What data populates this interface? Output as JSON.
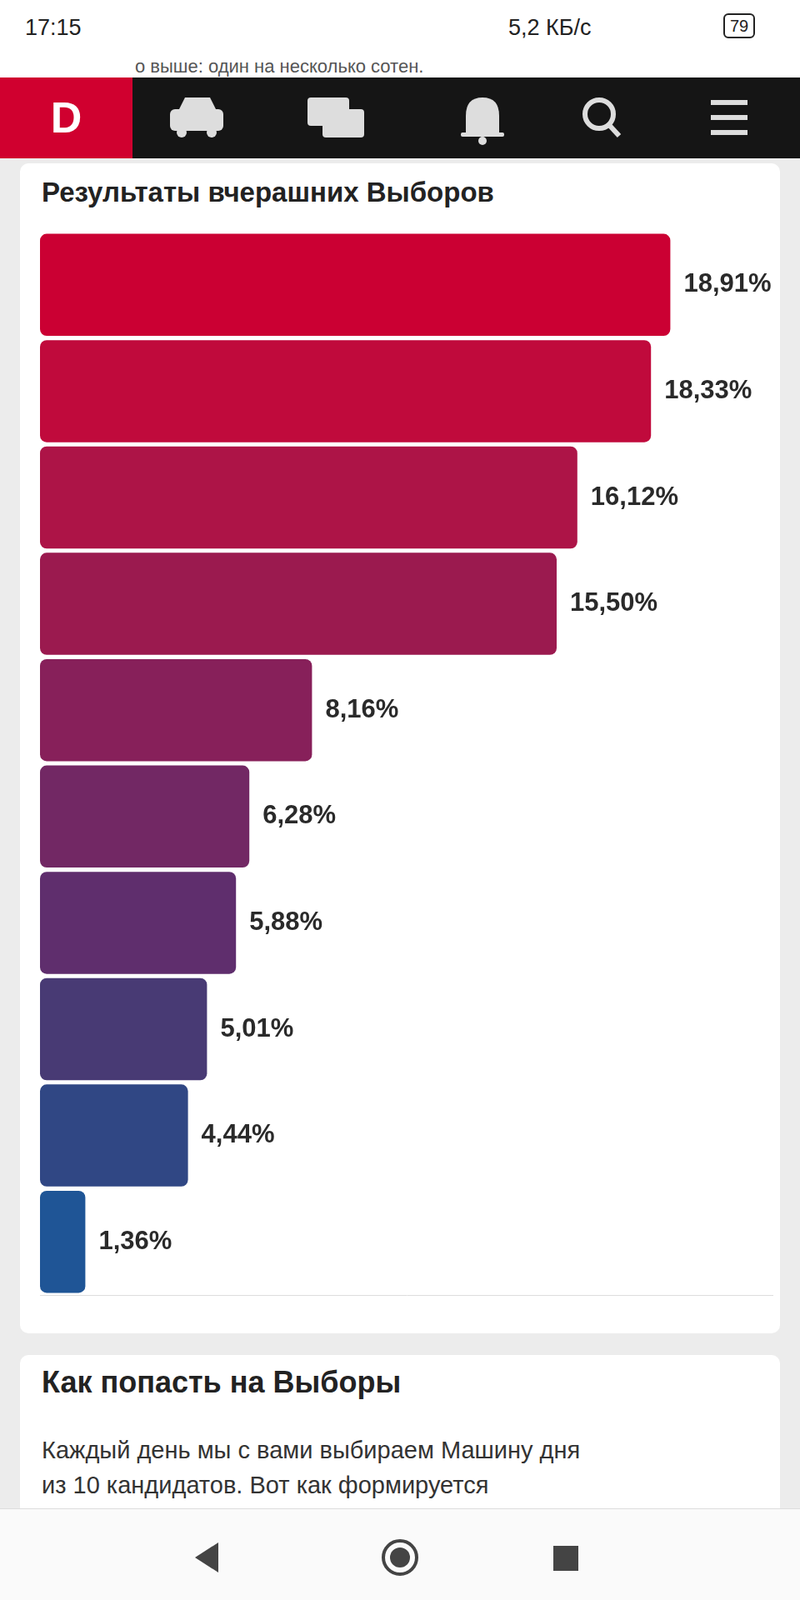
{
  "page": {
    "status_bar": {
      "time": "17:15",
      "speed": "5,2 КБ/с",
      "battery": "79"
    },
    "overlapped_text": "о выше: один на несколько сотен.",
    "logo": "D",
    "card2": {
      "title": "Как попасть на Выборы",
      "text": [
        "Каждый день мы с вами выбираем Машину дня",
        "из 10 кандидатов. Вот как формируется"
      ]
    }
  },
  "chart_data": {
    "type": "bar",
    "title": "Результаты вчерашних Выборов",
    "orientation": "horizontal",
    "categories": [
      null,
      null,
      null,
      null,
      null,
      null,
      null,
      null,
      null,
      null
    ],
    "values": [
      18.91,
      18.33,
      16.12,
      15.5,
      8.16,
      6.28,
      5.88,
      5.01,
      4.44,
      1.36
    ],
    "value_labels": [
      "18,91%",
      "18,33%",
      "16,12%",
      "15,50%",
      "8,16%",
      "6,28%",
      "5,88%",
      "5,01%",
      "4,44%",
      "1,36%"
    ],
    "colors": [
      "#cb0033",
      "#c00a3c",
      "#ad1447",
      "#9b1a4f",
      "#87205a",
      "#722864",
      "#5f2e6d",
      "#483a74",
      "#304784",
      "#1f5596"
    ],
    "xlim": [
      0,
      22
    ],
    "data_labels": true,
    "tick_labels": false,
    "grid": false
  }
}
